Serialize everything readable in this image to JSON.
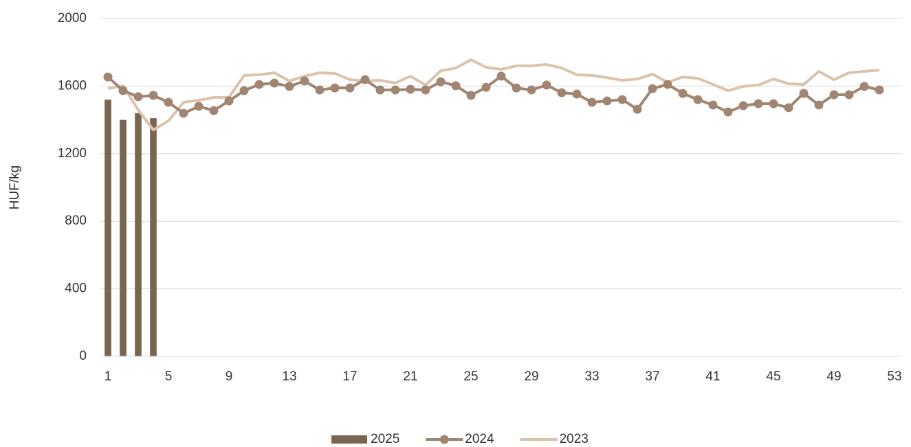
{
  "chart_data": {
    "type": "combo",
    "y_label": "HUF/kg",
    "categories": [
      "1",
      null,
      null,
      null,
      "5",
      null,
      null,
      null,
      "9",
      null,
      null,
      null,
      "13",
      null,
      null,
      null,
      "17",
      null,
      null,
      null,
      "21",
      null,
      null,
      null,
      "25",
      null,
      null,
      null,
      "29",
      null,
      null,
      null,
      "33",
      null,
      null,
      null,
      "37",
      null,
      null,
      null,
      "41",
      null,
      null,
      null,
      "45",
      null,
      null,
      null,
      "49",
      null,
      null,
      null,
      "53"
    ],
    "series": [
      {
        "name": "2025",
        "kind": "bar",
        "color": "#7a6552",
        "values": [
          1520,
          1400,
          1440,
          1410,
          null,
          null,
          null,
          null,
          null,
          null,
          null,
          null,
          null,
          null,
          null,
          null,
          null,
          null,
          null,
          null,
          null,
          null,
          null,
          null,
          null,
          null,
          null,
          null,
          null,
          null,
          null,
          null,
          null,
          null,
          null,
          null,
          null,
          null,
          null,
          null,
          null,
          null,
          null,
          null,
          null,
          null,
          null,
          null,
          null,
          null,
          null,
          null,
          null
        ]
      },
      {
        "name": "2024",
        "kind": "line-marker",
        "color": "#a08672",
        "values": [
          1654,
          1573,
          1537,
          1545,
          1504,
          1439,
          1480,
          1455,
          1512,
          1573,
          1610,
          1618,
          1598,
          1630,
          1577,
          1589,
          1589,
          1638,
          1577,
          1577,
          1581,
          1577,
          1626,
          1602,
          1545,
          1593,
          1659,
          1589,
          1577,
          1606,
          1561,
          1553,
          1504,
          1512,
          1520,
          1463,
          1585,
          1610,
          1557,
          1520,
          1488,
          1447,
          1484,
          1496,
          1496,
          1472,
          1557,
          1488,
          1549,
          1549,
          1598,
          1577,
          null
        ]
      },
      {
        "name": "2023",
        "kind": "line",
        "color": "#dcc3ac",
        "values": [
          1585,
          1602,
          1459,
          1341,
          1394,
          1504,
          1516,
          1533,
          1533,
          1663,
          1667,
          1679,
          1630,
          1659,
          1679,
          1675,
          1638,
          1630,
          1634,
          1618,
          1659,
          1606,
          1691,
          1707,
          1756,
          1711,
          1699,
          1720,
          1720,
          1728,
          1707,
          1667,
          1663,
          1650,
          1634,
          1642,
          1671,
          1622,
          1654,
          1646,
          1610,
          1573,
          1598,
          1606,
          1642,
          1614,
          1610,
          1687,
          1638,
          1679,
          1687,
          1695,
          null
        ]
      }
    ],
    "ylim": [
      0,
      2000
    ],
    "yticks": [
      0,
      400,
      800,
      1200,
      1600,
      2000
    ],
    "grid": true,
    "legend": "bottom"
  }
}
